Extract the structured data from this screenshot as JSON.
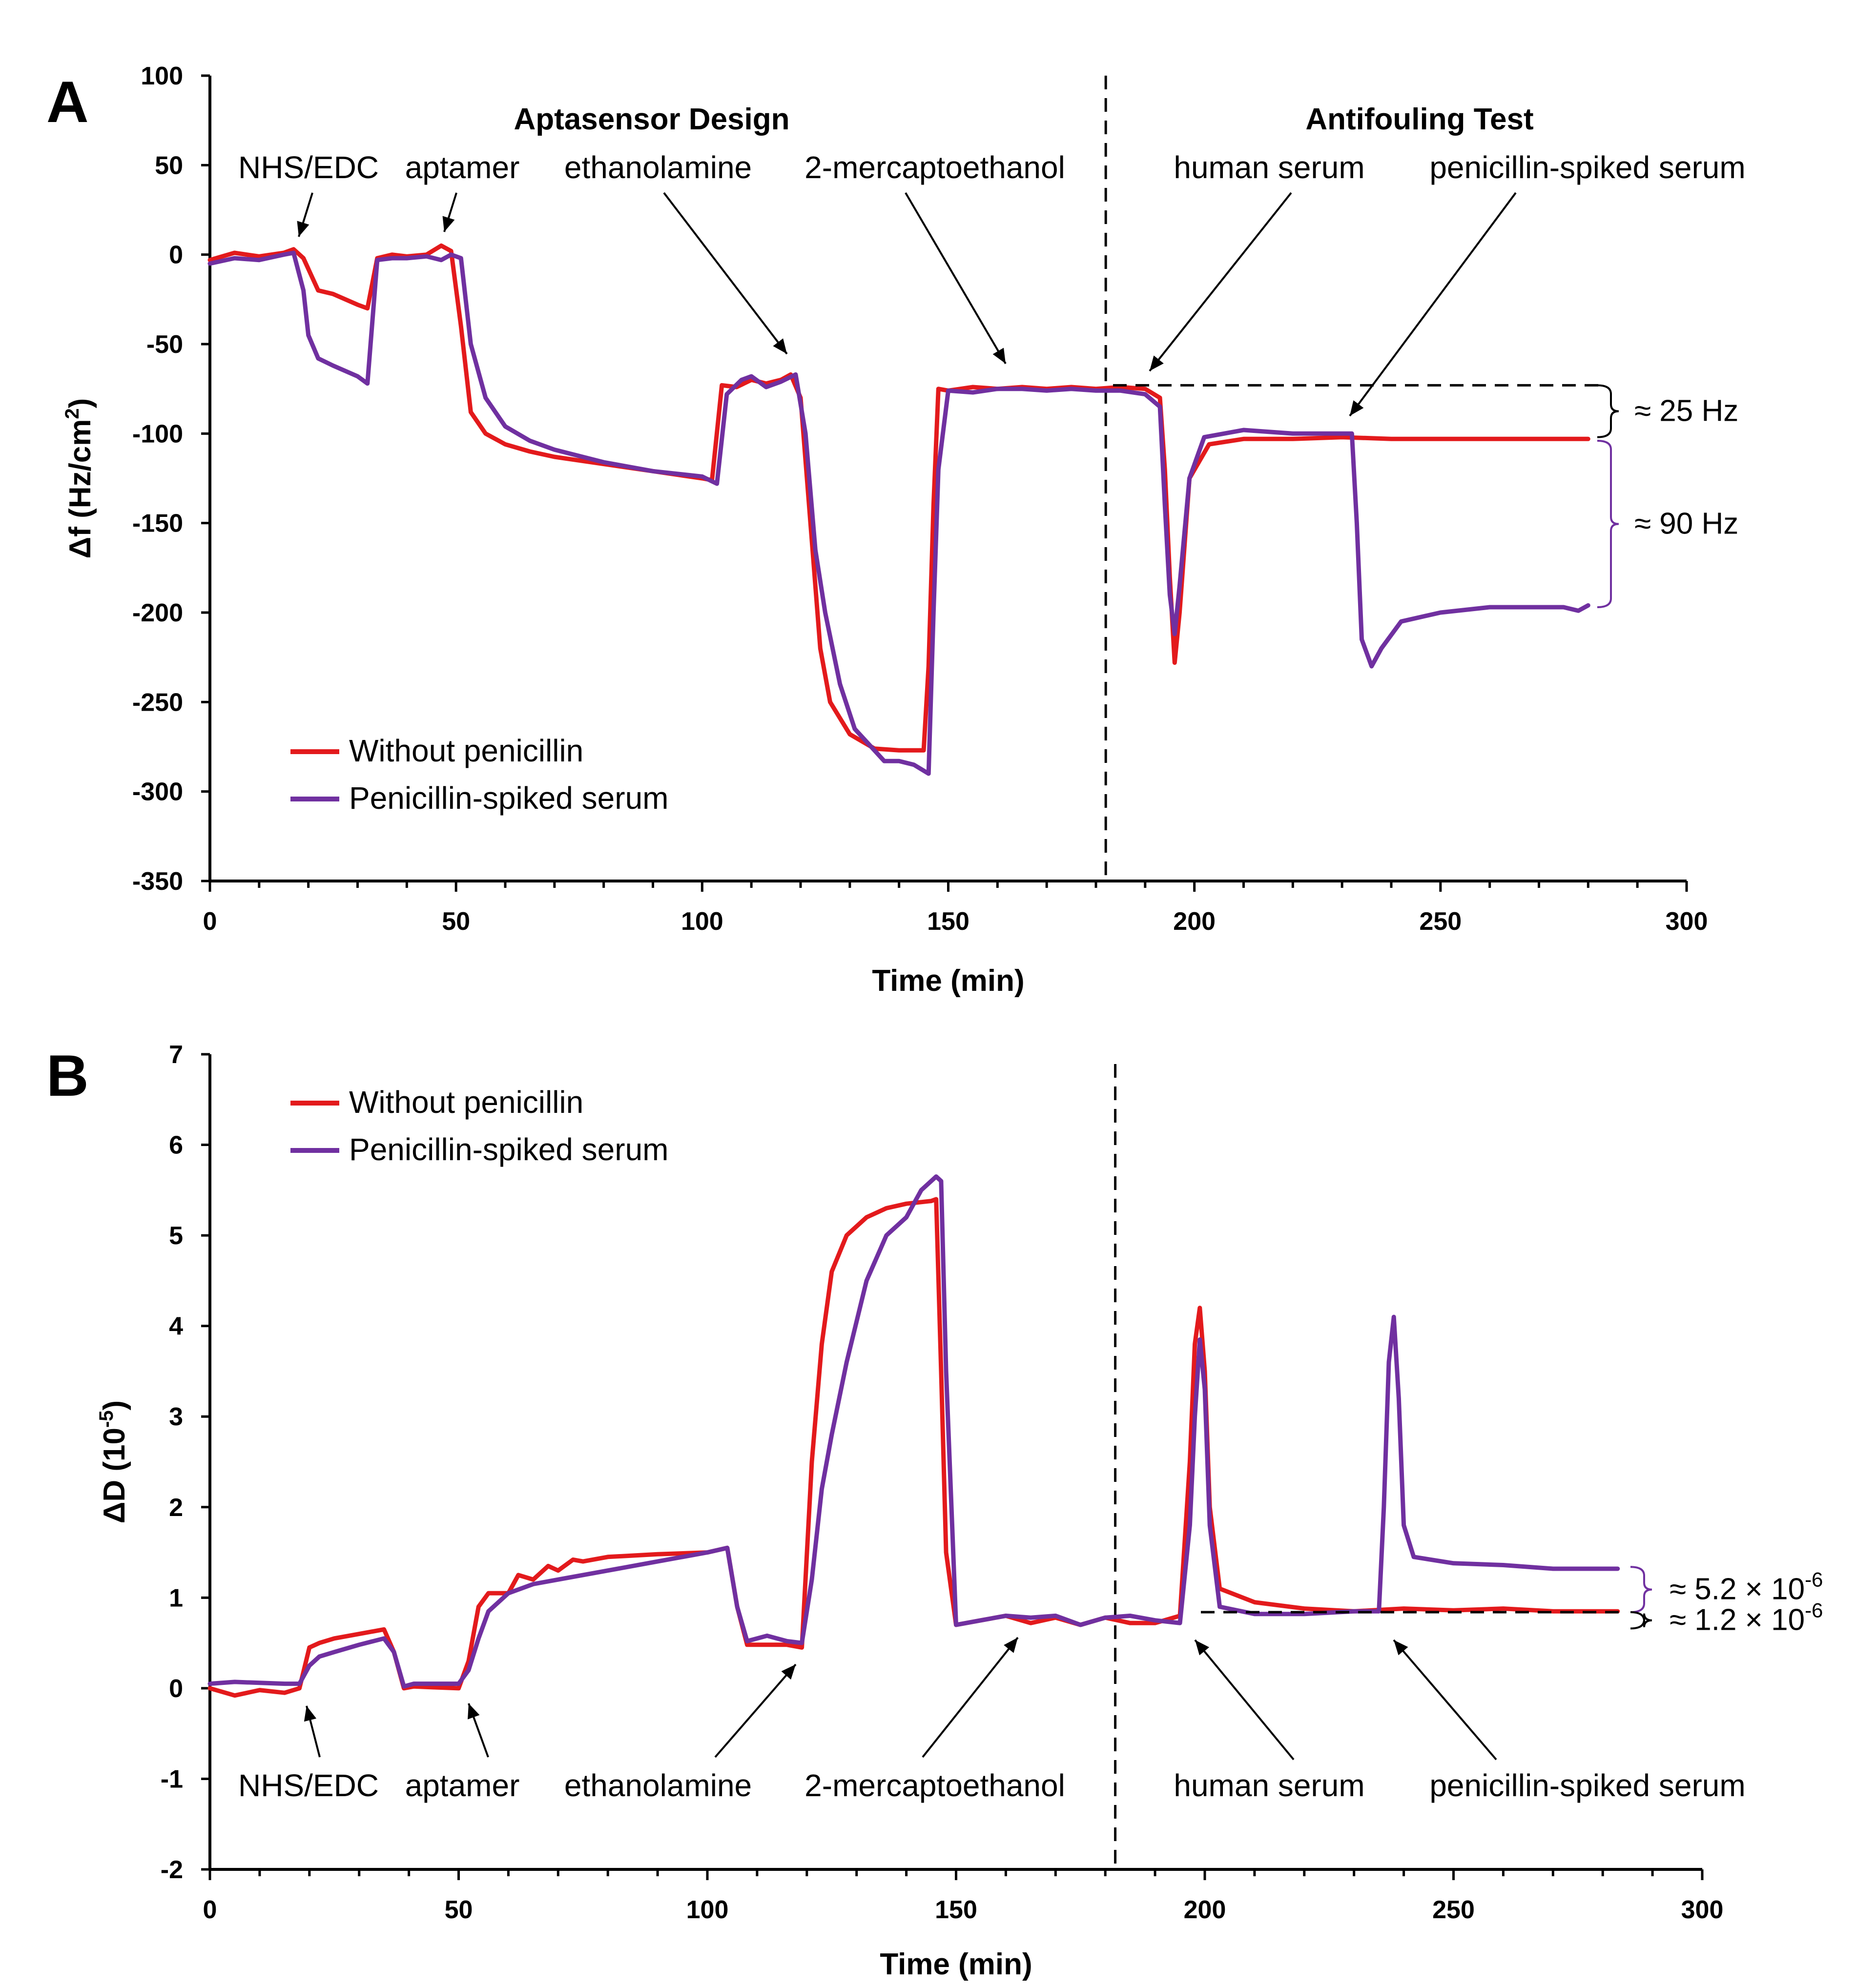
{
  "colors": {
    "red": "#e31a1c",
    "purple": "#7030a0",
    "axis": "#000000"
  },
  "chart_data": [
    {
      "panel": "A",
      "type": "line",
      "title": "",
      "xlabel": "Time (min)",
      "ylabel_main": "Δf (Hz/cm",
      "ylabel_sup": "2",
      "ylabel_close": ")",
      "xlim": [
        0,
        300
      ],
      "ylim": [
        -350,
        100
      ],
      "xticks": [
        "0",
        "50",
        "100",
        "150",
        "200",
        "250",
        "300"
      ],
      "yticks": [
        "100",
        "50",
        "0",
        "-50",
        "-100",
        "-150",
        "-200",
        "-250",
        "-300",
        "-350"
      ],
      "xtick_values": [
        0,
        50,
        100,
        150,
        200,
        250,
        300
      ],
      "ytick_values": [
        100,
        50,
        0,
        -50,
        -100,
        -150,
        -200,
        -250,
        -300,
        -350
      ],
      "sections": [
        "Aptasensor Design",
        "Antifouling Test"
      ],
      "divider_x": 182,
      "annotations": [
        "NHS/EDC",
        "aptamer",
        "ethanolamine",
        "2-mercaptoethanol",
        "human serum",
        "penicillin-spiked serum"
      ],
      "brackets": [
        "≈ 25 Hz",
        "≈ 90 Hz"
      ],
      "bracket_ranges": [
        [
          -73,
          -102
        ],
        [
          -104,
          -197
        ]
      ],
      "legend": [
        "Without penicillin",
        "Penicillin-spiked serum"
      ],
      "series": [
        {
          "name": "Without penicillin",
          "color": "#e31a1c",
          "x": [
            0,
            5,
            10,
            15,
            17,
            19,
            22,
            25,
            30,
            32,
            34,
            37,
            40,
            44,
            47,
            49,
            51,
            53,
            56,
            60,
            65,
            70,
            80,
            90,
            95,
            100,
            102,
            104,
            107,
            110,
            113,
            116,
            118,
            120,
            122,
            124,
            126,
            130,
            135,
            140,
            145,
            146,
            147,
            148,
            150,
            155,
            160,
            165,
            170,
            175,
            180,
            185,
            190,
            193,
            194,
            195,
            196,
            197,
            199,
            203,
            210,
            220,
            230,
            240,
            250,
            260,
            270,
            280
          ],
          "y": [
            -3,
            1,
            -1,
            1,
            3,
            -2,
            -20,
            -22,
            -28,
            -30,
            -2,
            0,
            -1,
            0,
            5,
            2,
            -40,
            -88,
            -100,
            -106,
            -110,
            -113,
            -117,
            -121,
            -123,
            -125,
            -126,
            -73,
            -74,
            -70,
            -72,
            -70,
            -67,
            -80,
            -150,
            -220,
            -250,
            -268,
            -276,
            -277,
            -277,
            -230,
            -140,
            -75,
            -76,
            -74,
            -75,
            -74,
            -75,
            -74,
            -75,
            -74,
            -75,
            -80,
            -120,
            -180,
            -228,
            -200,
            -125,
            -106,
            -103,
            -103,
            -102,
            -103,
            -103,
            -103,
            -103,
            -103
          ]
        },
        {
          "name": "Penicillin-spiked serum",
          "color": "#7030a0",
          "x": [
            0,
            5,
            10,
            15,
            17,
            19,
            20,
            22,
            25,
            30,
            32,
            34,
            37,
            40,
            44,
            47,
            49,
            51,
            53,
            56,
            60,
            65,
            70,
            80,
            90,
            100,
            103,
            105,
            108,
            110,
            113,
            116,
            119,
            121,
            123,
            125,
            128,
            131,
            134,
            137,
            140,
            143,
            146,
            147,
            148,
            150,
            155,
            160,
            165,
            170,
            175,
            180,
            185,
            190,
            193,
            194,
            195,
            196,
            197,
            199,
            202,
            210,
            220,
            230,
            232,
            233,
            234,
            236,
            238,
            242,
            250,
            260,
            270,
            275,
            278,
            280
          ],
          "y": [
            -5,
            -2,
            -3,
            0,
            1,
            -20,
            -45,
            -58,
            -62,
            -68,
            -72,
            -3,
            -2,
            -2,
            -1,
            -3,
            0,
            -2,
            -50,
            -80,
            -96,
            -104,
            -109,
            -116,
            -121,
            -124,
            -128,
            -78,
            -70,
            -68,
            -74,
            -71,
            -67,
            -100,
            -165,
            -200,
            -240,
            -265,
            -274,
            -283,
            -283,
            -285,
            -290,
            -200,
            -120,
            -76,
            -77,
            -75,
            -75,
            -76,
            -75,
            -76,
            -76,
            -78,
            -85,
            -140,
            -190,
            -212,
            -185,
            -125,
            -102,
            -98,
            -100,
            -100,
            -100,
            -150,
            -215,
            -230,
            -220,
            -205,
            -200,
            -197,
            -197,
            -197,
            -199,
            -196
          ]
        }
      ]
    },
    {
      "panel": "B",
      "type": "line",
      "title": "",
      "xlabel": "Time (min)",
      "ylabel_main": "ΔD (10",
      "ylabel_sup": "-5",
      "ylabel_close": ")",
      "xlim": [
        0,
        300
      ],
      "ylim": [
        -2,
        7
      ],
      "xticks": [
        "0",
        "50",
        "100",
        "150",
        "200",
        "250",
        "300"
      ],
      "yticks": [
        "7",
        "6",
        "5",
        "4",
        "3",
        "2",
        "1",
        "0",
        "-1",
        "-2"
      ],
      "xtick_values": [
        0,
        50,
        100,
        150,
        200,
        250,
        300
      ],
      "ytick_values": [
        7,
        6,
        5,
        4,
        3,
        2,
        1,
        0,
        -1,
        -2
      ],
      "divider_x": 182,
      "annotations": [
        "NHS/EDC",
        "aptamer",
        "ethanolamine",
        "2-mercaptoethanol",
        "human serum",
        "penicillin-spiked serum"
      ],
      "brackets": [
        "≈ 5.2 × 10",
        "≈ 1.2 × 10"
      ],
      "bracket_sup": "-6",
      "bracket_ranges": [
        [
          1.34,
          0.84
        ],
        [
          0.84,
          0.66
        ]
      ],
      "legend": [
        "Without penicillin",
        "Penicillin-spiked serum"
      ],
      "series": [
        {
          "name": "Without penicillin",
          "color": "#e31a1c",
          "x": [
            0,
            5,
            10,
            15,
            18,
            20,
            22,
            25,
            30,
            35,
            37,
            39,
            41,
            45,
            50,
            52,
            54,
            56,
            60,
            62,
            65,
            68,
            70,
            73,
            75,
            80,
            90,
            100,
            104,
            106,
            108,
            112,
            116,
            119,
            121,
            123,
            125,
            128,
            132,
            136,
            140,
            145,
            146,
            147,
            148,
            150,
            155,
            160,
            165,
            170,
            175,
            180,
            185,
            190,
            195,
            197,
            198,
            199,
            200,
            201,
            203,
            210,
            220,
            230,
            240,
            250,
            260,
            270,
            283
          ],
          "y": [
            0.0,
            -0.08,
            -0.02,
            -0.05,
            0.0,
            0.45,
            0.5,
            0.55,
            0.6,
            0.65,
            0.4,
            0.0,
            0.02,
            0.01,
            0.0,
            0.3,
            0.9,
            1.05,
            1.05,
            1.25,
            1.2,
            1.35,
            1.3,
            1.42,
            1.4,
            1.45,
            1.48,
            1.5,
            1.55,
            0.9,
            0.48,
            0.48,
            0.48,
            0.45,
            2.5,
            3.8,
            4.6,
            5.0,
            5.2,
            5.3,
            5.35,
            5.38,
            5.4,
            3.5,
            1.5,
            0.7,
            0.75,
            0.8,
            0.72,
            0.78,
            0.7,
            0.78,
            0.72,
            0.72,
            0.8,
            2.5,
            3.8,
            4.2,
            3.5,
            2.0,
            1.1,
            0.95,
            0.88,
            0.85,
            0.88,
            0.86,
            0.88,
            0.85,
            0.85
          ]
        },
        {
          "name": "Penicillin-spiked serum",
          "color": "#7030a0",
          "x": [
            0,
            5,
            10,
            15,
            18,
            20,
            22,
            25,
            30,
            35,
            37,
            39,
            41,
            45,
            50,
            52,
            54,
            56,
            60,
            65,
            70,
            80,
            90,
            100,
            104,
            106,
            108,
            112,
            116,
            119,
            121,
            123,
            125,
            128,
            132,
            136,
            140,
            143,
            145,
            146,
            147,
            148,
            150,
            155,
            160,
            165,
            170,
            175,
            180,
            185,
            190,
            195,
            197,
            198,
            199,
            200,
            201,
            203,
            210,
            220,
            230,
            235,
            236,
            237,
            238,
            239,
            240,
            242,
            250,
            260,
            270,
            283
          ],
          "y": [
            0.05,
            0.07,
            0.06,
            0.05,
            0.05,
            0.25,
            0.35,
            0.4,
            0.48,
            0.55,
            0.4,
            0.02,
            0.05,
            0.05,
            0.05,
            0.2,
            0.55,
            0.85,
            1.05,
            1.15,
            1.2,
            1.3,
            1.4,
            1.5,
            1.55,
            0.9,
            0.52,
            0.58,
            0.52,
            0.5,
            1.2,
            2.2,
            2.8,
            3.6,
            4.5,
            5.0,
            5.2,
            5.5,
            5.6,
            5.65,
            5.6,
            3.5,
            0.7,
            0.75,
            0.8,
            0.78,
            0.8,
            0.7,
            0.78,
            0.8,
            0.75,
            0.72,
            1.8,
            3.0,
            3.85,
            3.3,
            1.8,
            0.9,
            0.82,
            0.82,
            0.85,
            0.85,
            2.0,
            3.6,
            4.1,
            3.2,
            1.8,
            1.45,
            1.38,
            1.36,
            1.32,
            1.32
          ]
        }
      ]
    }
  ]
}
